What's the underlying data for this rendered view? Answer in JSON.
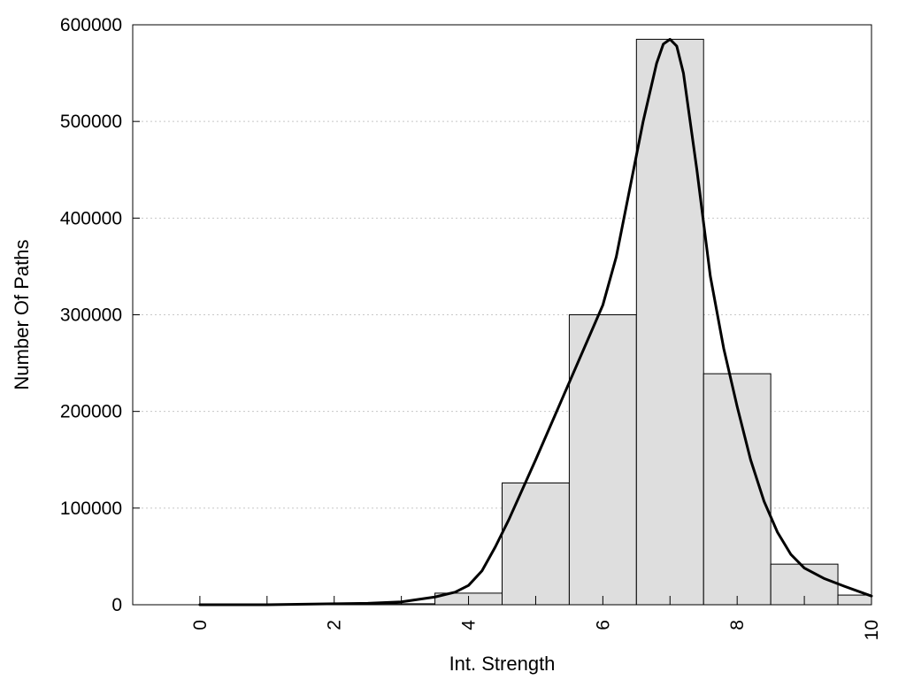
{
  "chart_data": {
    "type": "bar",
    "title": "",
    "xlabel": "Int. Strength",
    "ylabel": "Number Of Paths",
    "xlim": [
      -1,
      10
    ],
    "ylim": [
      0,
      600000
    ],
    "x_ticks": [
      0,
      2,
      4,
      6,
      8,
      10
    ],
    "x_tick_labels": [
      "0",
      "2",
      "4",
      "6",
      "8",
      "10"
    ],
    "y_ticks": [
      0,
      100000,
      200000,
      300000,
      400000,
      500000,
      600000
    ],
    "y_tick_labels": [
      "0",
      "100000",
      "200000",
      "300000",
      "400000",
      "500000",
      "600000"
    ],
    "grid": "horizontal dotted",
    "bar_color": "#dedede",
    "line_color": "#000000",
    "bins": [
      {
        "x0": -0.5,
        "x1": 0.5,
        "value": 0
      },
      {
        "x0": 0.5,
        "x1": 1.5,
        "value": 0
      },
      {
        "x0": 1.5,
        "x1": 2.5,
        "value": 0
      },
      {
        "x0": 2.5,
        "x1": 3.5,
        "value": 1000
      },
      {
        "x0": 3.5,
        "x1": 4.5,
        "value": 12000
      },
      {
        "x0": 4.5,
        "x1": 5.5,
        "value": 126000
      },
      {
        "x0": 5.5,
        "x1": 6.5,
        "value": 300000
      },
      {
        "x0": 6.5,
        "x1": 7.5,
        "value": 585000
      },
      {
        "x0": 7.5,
        "x1": 8.5,
        "value": 239000
      },
      {
        "x0": 8.5,
        "x1": 9.5,
        "value": 42000
      },
      {
        "x0": 9.5,
        "x1": 10.5,
        "value": 10000
      }
    ],
    "density_curve": {
      "x": [
        0,
        1,
        2,
        2.5,
        3,
        3.5,
        3.8,
        4.0,
        4.2,
        4.4,
        4.6,
        5.0,
        5.5,
        6.0,
        6.2,
        6.4,
        6.6,
        6.8,
        6.9,
        7.0,
        7.1,
        7.2,
        7.4,
        7.6,
        7.8,
        8.0,
        8.2,
        8.4,
        8.6,
        8.8,
        9.0,
        9.3,
        9.6,
        10.0
      ],
      "y": [
        0,
        0,
        1000,
        1500,
        3000,
        8000,
        13000,
        20000,
        35000,
        60000,
        88000,
        150000,
        230000,
        310000,
        360000,
        430000,
        500000,
        560000,
        580000,
        585000,
        578000,
        550000,
        450000,
        340000,
        265000,
        205000,
        150000,
        107000,
        75000,
        52000,
        38000,
        27000,
        19000,
        9000
      ]
    }
  }
}
